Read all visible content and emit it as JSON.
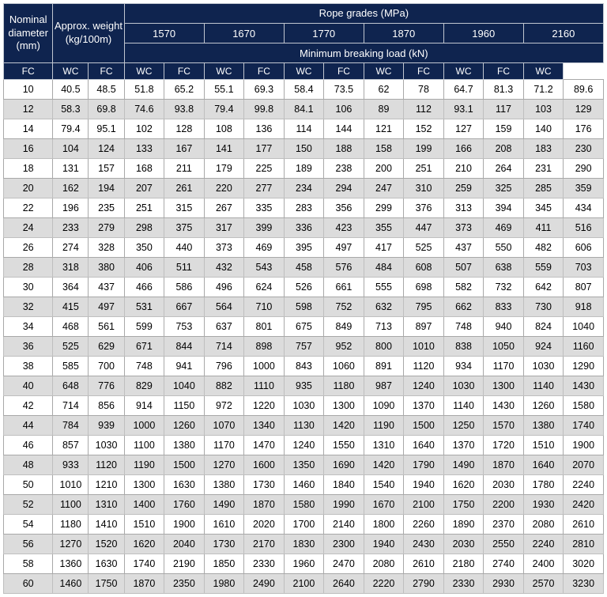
{
  "header": {
    "nominal_diameter": "Nominal diameter (mm)",
    "approx_weight": "Approx. weight (kg/100m)",
    "rope_grades": "Rope grades (MPa)",
    "min_breaking_load": "Minimum breaking load (kN)",
    "grades": [
      "1570",
      "1670",
      "1770",
      "1870",
      "1960",
      "2160"
    ],
    "fc": "FC",
    "wc": "WC"
  },
  "style": {
    "header_bg": "#0f244f",
    "header_fg": "#ffffff",
    "row_odd_bg": "#ffffff",
    "row_even_bg": "#dcdcdc",
    "border_color": "#a8a8a8",
    "font_family": "Arial, sans-serif"
  },
  "rows": [
    {
      "d": "10",
      "wt": [
        "40.5",
        "48.5"
      ],
      "v": [
        "51.8",
        "65.2",
        "55.1",
        "69.3",
        "58.4",
        "73.5",
        "62",
        "78",
        "64.7",
        "81.3",
        "71.2",
        "89.6"
      ]
    },
    {
      "d": "12",
      "wt": [
        "58.3",
        "69.8"
      ],
      "v": [
        "74.6",
        "93.8",
        "79.4",
        "99.8",
        "84.1",
        "106",
        "89",
        "112",
        "93.1",
        "117",
        "103",
        "129"
      ]
    },
    {
      "d": "14",
      "wt": [
        "79.4",
        "95.1"
      ],
      "v": [
        "102",
        "128",
        "108",
        "136",
        "114",
        "144",
        "121",
        "152",
        "127",
        "159",
        "140",
        "176"
      ]
    },
    {
      "d": "16",
      "wt": [
        "104",
        "124"
      ],
      "v": [
        "133",
        "167",
        "141",
        "177",
        "150",
        "188",
        "158",
        "199",
        "166",
        "208",
        "183",
        "230"
      ]
    },
    {
      "d": "18",
      "wt": [
        "131",
        "157"
      ],
      "v": [
        "168",
        "211",
        "179",
        "225",
        "189",
        "238",
        "200",
        "251",
        "210",
        "264",
        "231",
        "290"
      ]
    },
    {
      "d": "20",
      "wt": [
        "162",
        "194"
      ],
      "v": [
        "207",
        "261",
        "220",
        "277",
        "234",
        "294",
        "247",
        "310",
        "259",
        "325",
        "285",
        "359"
      ]
    },
    {
      "d": "22",
      "wt": [
        "196",
        "235"
      ],
      "v": [
        "251",
        "315",
        "267",
        "335",
        "283",
        "356",
        "299",
        "376",
        "313",
        "394",
        "345",
        "434"
      ]
    },
    {
      "d": "24",
      "wt": [
        "233",
        "279"
      ],
      "v": [
        "298",
        "375",
        "317",
        "399",
        "336",
        "423",
        "355",
        "447",
        "373",
        "469",
        "411",
        "516"
      ]
    },
    {
      "d": "26",
      "wt": [
        "274",
        "328"
      ],
      "v": [
        "350",
        "440",
        "373",
        "469",
        "395",
        "497",
        "417",
        "525",
        "437",
        "550",
        "482",
        "606"
      ]
    },
    {
      "d": "28",
      "wt": [
        "318",
        "380"
      ],
      "v": [
        "406",
        "511",
        "432",
        "543",
        "458",
        "576",
        "484",
        "608",
        "507",
        "638",
        "559",
        "703"
      ]
    },
    {
      "d": "30",
      "wt": [
        "364",
        "437"
      ],
      "v": [
        "466",
        "586",
        "496",
        "624",
        "526",
        "661",
        "555",
        "698",
        "582",
        "732",
        "642",
        "807"
      ]
    },
    {
      "d": "32",
      "wt": [
        "415",
        "497"
      ],
      "v": [
        "531",
        "667",
        "564",
        "710",
        "598",
        "752",
        "632",
        "795",
        "662",
        "833",
        "730",
        "918"
      ]
    },
    {
      "d": "34",
      "wt": [
        "468",
        "561"
      ],
      "v": [
        "599",
        "753",
        "637",
        "801",
        "675",
        "849",
        "713",
        "897",
        "748",
        "940",
        "824",
        "1040"
      ]
    },
    {
      "d": "36",
      "wt": [
        "525",
        "629"
      ],
      "v": [
        "671",
        "844",
        "714",
        "898",
        "757",
        "952",
        "800",
        "1010",
        "838",
        "1050",
        "924",
        "1160"
      ]
    },
    {
      "d": "38",
      "wt": [
        "585",
        "700"
      ],
      "v": [
        "748",
        "941",
        "796",
        "1000",
        "843",
        "1060",
        "891",
        "1120",
        "934",
        "1170",
        "1030",
        "1290"
      ]
    },
    {
      "d": "40",
      "wt": [
        "648",
        "776"
      ],
      "v": [
        "829",
        "1040",
        "882",
        "1110",
        "935",
        "1180",
        "987",
        "1240",
        "1030",
        "1300",
        "1140",
        "1430"
      ]
    },
    {
      "d": "42",
      "wt": [
        "714",
        "856"
      ],
      "v": [
        "914",
        "1150",
        "972",
        "1220",
        "1030",
        "1300",
        "1090",
        "1370",
        "1140",
        "1430",
        "1260",
        "1580"
      ]
    },
    {
      "d": "44",
      "wt": [
        "784",
        "939"
      ],
      "v": [
        "1000",
        "1260",
        "1070",
        "1340",
        "1130",
        "1420",
        "1190",
        "1500",
        "1250",
        "1570",
        "1380",
        "1740"
      ]
    },
    {
      "d": "46",
      "wt": [
        "857",
        "1030"
      ],
      "v": [
        "1100",
        "1380",
        "1170",
        "1470",
        "1240",
        "1550",
        "1310",
        "1640",
        "1370",
        "1720",
        "1510",
        "1900"
      ]
    },
    {
      "d": "48",
      "wt": [
        "933",
        "1120"
      ],
      "v": [
        "1190",
        "1500",
        "1270",
        "1600",
        "1350",
        "1690",
        "1420",
        "1790",
        "1490",
        "1870",
        "1640",
        "2070"
      ]
    },
    {
      "d": "50",
      "wt": [
        "1010",
        "1210"
      ],
      "v": [
        "1300",
        "1630",
        "1380",
        "1730",
        "1460",
        "1840",
        "1540",
        "1940",
        "1620",
        "2030",
        "1780",
        "2240"
      ]
    },
    {
      "d": "52",
      "wt": [
        "1100",
        "1310"
      ],
      "v": [
        "1400",
        "1760",
        "1490",
        "1870",
        "1580",
        "1990",
        "1670",
        "2100",
        "1750",
        "2200",
        "1930",
        "2420"
      ]
    },
    {
      "d": "54",
      "wt": [
        "1180",
        "1410"
      ],
      "v": [
        "1510",
        "1900",
        "1610",
        "2020",
        "1700",
        "2140",
        "1800",
        "2260",
        "1890",
        "2370",
        "2080",
        "2610"
      ]
    },
    {
      "d": "56",
      "wt": [
        "1270",
        "1520"
      ],
      "v": [
        "1620",
        "2040",
        "1730",
        "2170",
        "1830",
        "2300",
        "1940",
        "2430",
        "2030",
        "2550",
        "2240",
        "2810"
      ]
    },
    {
      "d": "58",
      "wt": [
        "1360",
        "1630"
      ],
      "v": [
        "1740",
        "2190",
        "1850",
        "2330",
        "1960",
        "2470",
        "2080",
        "2610",
        "2180",
        "2740",
        "2400",
        "3020"
      ]
    },
    {
      "d": "60",
      "wt": [
        "1460",
        "1750"
      ],
      "v": [
        "1870",
        "2350",
        "1980",
        "2490",
        "2100",
        "2640",
        "2220",
        "2790",
        "2330",
        "2930",
        "2570",
        "3230"
      ]
    }
  ]
}
